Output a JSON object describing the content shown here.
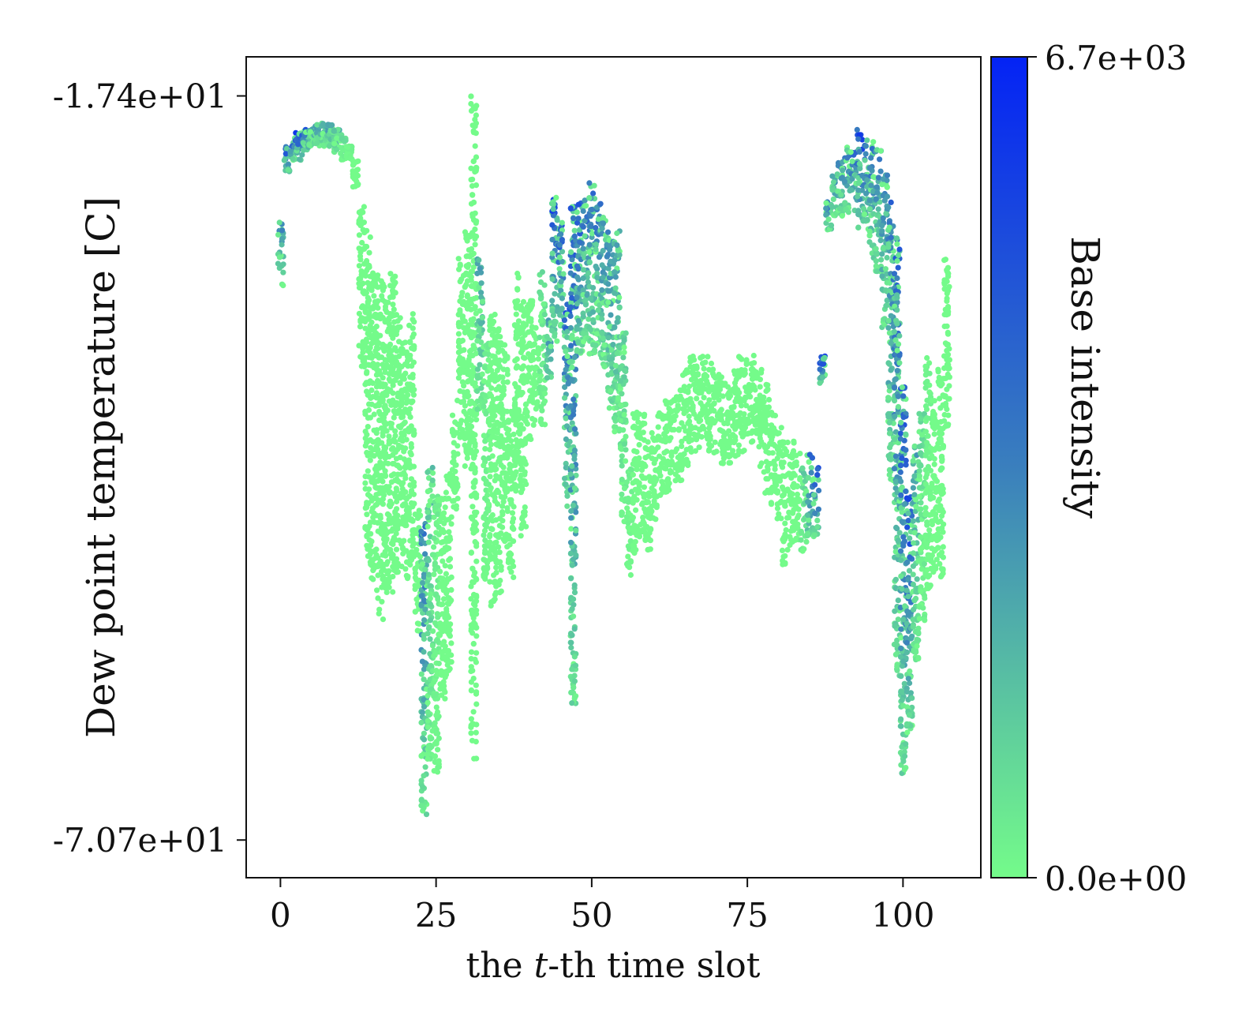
{
  "chart_data": {
    "type": "scatter",
    "xlabel_prefix": "the ",
    "xlabel_var": "t",
    "xlabel_suffix": "-th time slot",
    "ylabel": "Dew point temperature [C]",
    "xticks": [
      0,
      25,
      50,
      75,
      100
    ],
    "xtick_labels": [
      "0",
      "25",
      "50",
      "75",
      "100"
    ],
    "xlim": [
      -5.5,
      112.5
    ],
    "yticks": [
      -17.4,
      -70.7
    ],
    "ytick_labels": [
      "-1.74e+01",
      "-7.07e+01"
    ],
    "ylim": [
      -73.4,
      -14.6
    ],
    "colorbar": {
      "label": "Base intensity",
      "min": 0,
      "max": 6700,
      "min_label": "0.0e+00",
      "max_label": "6.7e+03",
      "color_low": "#74fb8a",
      "color_mid": "#3a7fbd",
      "color_high": "#0423f5"
    },
    "point_color_default": "#74fb8a",
    "series": [
      {
        "x": [
          0,
          1,
          2,
          3,
          4,
          5,
          6,
          7,
          8,
          9,
          10,
          11,
          12,
          13,
          14,
          15,
          16,
          17,
          18,
          19,
          20,
          21,
          22,
          23,
          24,
          25,
          26,
          27,
          28,
          29,
          30,
          31,
          32,
          33,
          34,
          35,
          36,
          37,
          38,
          39,
          40,
          41,
          42,
          43,
          44,
          45,
          46,
          47,
          48,
          49,
          50,
          51,
          52,
          53,
          54,
          55,
          56,
          57,
          58,
          59,
          60,
          61,
          62,
          63,
          64,
          65,
          66,
          67,
          68,
          69,
          70,
          71,
          72,
          73,
          74,
          75,
          76,
          77,
          78,
          79,
          80,
          81,
          82,
          83,
          84,
          85,
          86,
          87,
          88,
          89,
          90,
          91,
          92,
          93,
          94,
          95,
          96,
          97,
          98,
          99,
          100,
          101,
          102,
          103,
          104,
          105,
          106,
          107
        ],
        "y_low": [
          -31,
          -23,
          -22,
          -22,
          -21.5,
          -21,
          -21,
          -21,
          -21,
          -21.5,
          -22,
          -22,
          -24,
          -37,
          -51,
          -53,
          -55,
          -53,
          -53,
          -52,
          -52,
          -51,
          -56,
          -69,
          -65,
          -66,
          -61,
          -59,
          -47,
          -42,
          -44,
          -65,
          -40,
          -52,
          -54,
          -53,
          -50,
          -52,
          -46,
          -49,
          -42,
          -41,
          -41,
          -38,
          -35,
          -34,
          -47,
          -61,
          -36,
          -35,
          -36,
          -36,
          -37,
          -40,
          -42,
          -48,
          -52,
          -51,
          -49,
          -50,
          -48,
          -46,
          -46,
          -45,
          -45,
          -44,
          -43,
          -43,
          -42,
          -43,
          -43,
          -44,
          -44,
          -44,
          -43,
          -42,
          -43,
          -44,
          -46,
          -47,
          -48,
          -51,
          -50,
          -50,
          -50,
          -49,
          -49,
          -38,
          -27,
          -26,
          -26,
          -26,
          -26,
          -27,
          -27,
          -29,
          -30,
          -34,
          -45,
          -59,
          -66,
          -63,
          -58,
          -55,
          -53,
          -52,
          -52,
          -42
        ],
        "y_high": [
          -26,
          -21,
          -20,
          -20,
          -19.8,
          -19.6,
          -19.4,
          -19.3,
          -19.4,
          -19.8,
          -20,
          -21,
          -22,
          -25,
          -27,
          -30,
          -30,
          -31,
          -30,
          -33,
          -35,
          -33,
          -47,
          -48,
          -44,
          -46,
          -46,
          -44,
          -39,
          -29,
          -27,
          -17.4,
          -29,
          -35,
          -33,
          -34,
          -35,
          -40,
          -30,
          -32,
          -32,
          -34,
          -30,
          -33,
          -24,
          -26,
          -32,
          -25,
          -25,
          -24.5,
          -23.5,
          -25,
          -26,
          -27,
          -27,
          -34,
          -44,
          -40,
          -40,
          -42,
          -41,
          -40,
          -39,
          -39,
          -38,
          -37,
          -36,
          -36,
          -36,
          -36,
          -37,
          -37,
          -38,
          -37,
          -36,
          -36,
          -36,
          -37,
          -38,
          -40,
          -41,
          -42,
          -42,
          -43,
          -44,
          -43,
          -44,
          -36,
          -25,
          -23,
          -22,
          -21,
          -21,
          -19.5,
          -20.5,
          -20.5,
          -21,
          -23,
          -25,
          -27,
          -38,
          -46,
          -42,
          -40,
          -36,
          -38,
          -37,
          -29
        ],
        "c_peak": [
          3800,
          6000,
          6700,
          6700,
          5000,
          3500,
          3200,
          3000,
          3500,
          2500,
          1200,
          300,
          0,
          0,
          0,
          0,
          0,
          0,
          0,
          0,
          0,
          0,
          0,
          4200,
          2000,
          600,
          0,
          0,
          0,
          0,
          0,
          0,
          2800,
          500,
          0,
          0,
          0,
          0,
          0,
          0,
          0,
          0,
          1000,
          4500,
          6500,
          6000,
          5500,
          5200,
          5500,
          4800,
          4600,
          4400,
          4000,
          3800,
          3200,
          1500,
          400,
          0,
          0,
          0,
          0,
          0,
          0,
          0,
          0,
          0,
          0,
          0,
          0,
          0,
          0,
          0,
          0,
          0,
          0,
          0,
          0,
          0,
          0,
          0,
          0,
          0,
          0,
          0,
          1500,
          5800,
          6000,
          6400,
          4800,
          4000,
          3800,
          4500,
          5500,
          6600,
          5600,
          5000,
          4400,
          4000,
          4600,
          5200,
          5500,
          6000,
          3000,
          1200,
          300,
          0,
          0,
          0
        ]
      }
    ]
  }
}
